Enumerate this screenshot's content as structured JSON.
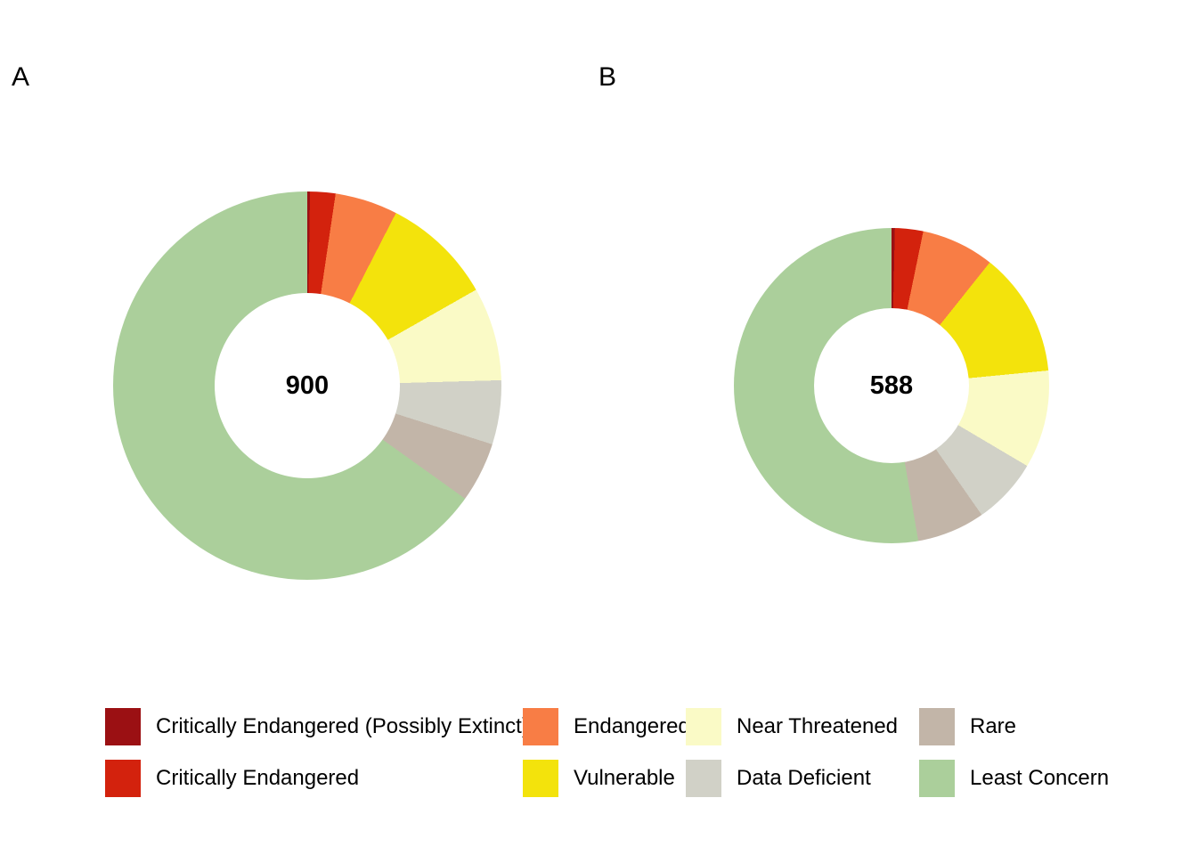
{
  "panels": [
    {
      "label": "A"
    },
    {
      "label": "B"
    }
  ],
  "chart_data": [
    {
      "type": "pie",
      "subtype": "donut",
      "panel": "A",
      "center_label": "900",
      "total": 900,
      "categories": [
        "Critically Endangered (Possibly Extinct)",
        "Critically Endangered",
        "Endangered",
        "Vulnerable",
        "Near Threatened",
        "Data Deficient",
        "Rare",
        "Least Concern"
      ],
      "values": [
        2,
        19,
        47,
        83,
        70,
        48,
        45,
        586
      ],
      "colors": [
        "#9B1013",
        "#D3220D",
        "#F87D45",
        "#F3E30C",
        "#FAFAC6",
        "#D1D1C7",
        "#C2B5A8",
        "#ABCF9B"
      ],
      "start_angle_deg": 0,
      "direction": "clockwise",
      "inner_radius_ratio": 0.48,
      "legend_position": "bottom"
    },
    {
      "type": "pie",
      "subtype": "donut",
      "panel": "B",
      "center_label": "588",
      "total": 588,
      "categories": [
        "Critically Endangered (Possibly Extinct)",
        "Critically Endangered",
        "Endangered",
        "Vulnerable",
        "Near Threatened",
        "Data Deficient",
        "Rare",
        "Least Concern"
      ],
      "values": [
        2,
        17,
        44,
        75,
        59,
        40,
        41,
        310
      ],
      "colors": [
        "#9B1013",
        "#D3220D",
        "#F87D45",
        "#F3E30C",
        "#FAFAC6",
        "#D1D1C7",
        "#C2B5A8",
        "#ABCF9B"
      ],
      "start_angle_deg": 0,
      "direction": "clockwise",
      "inner_radius_ratio": 0.49,
      "legend_position": "bottom"
    }
  ],
  "legend": {
    "items": [
      {
        "label": "Critically Endangered (Possibly Extinct)",
        "color": "#9B1013"
      },
      {
        "label": "Critically Endangered",
        "color": "#D3220D"
      },
      {
        "label": "Endangered",
        "color": "#F87D45"
      },
      {
        "label": "Vulnerable",
        "color": "#F3E30C"
      },
      {
        "label": "Near Threatened",
        "color": "#FAFAC6"
      },
      {
        "label": "Data Deficient",
        "color": "#D1D1C7"
      },
      {
        "label": "Rare",
        "color": "#C2B5A8"
      },
      {
        "label": "Least Concern",
        "color": "#ABCF9B"
      }
    ]
  }
}
